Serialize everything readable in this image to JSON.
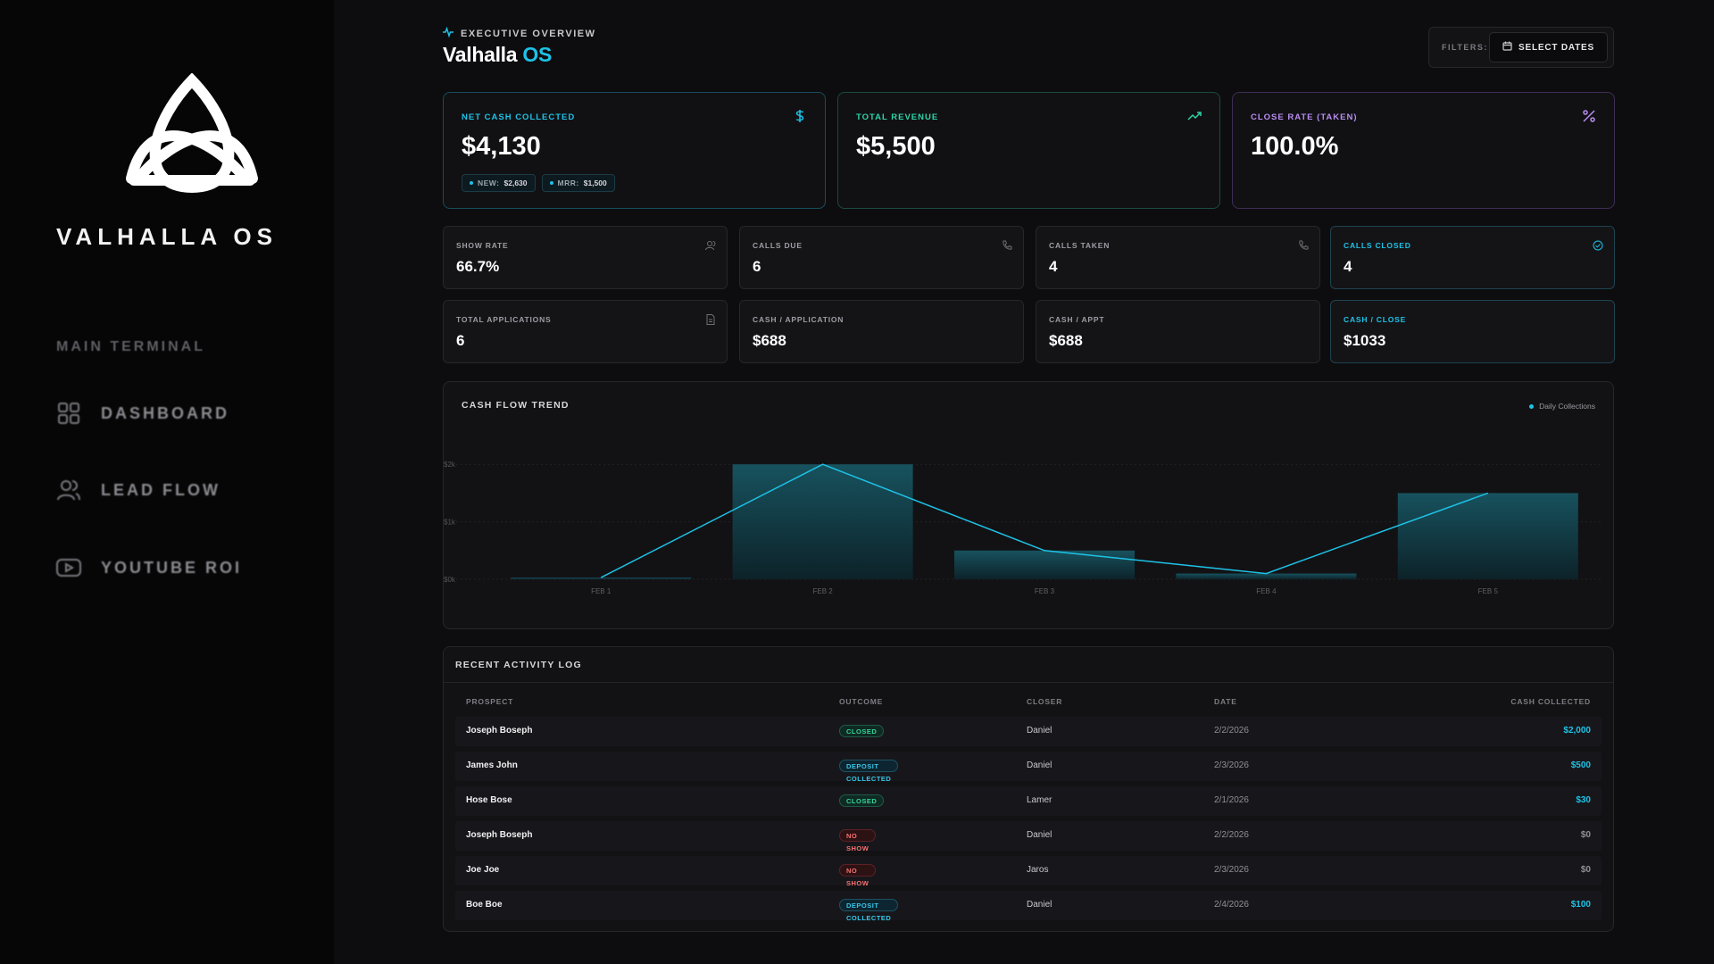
{
  "sidebar": {
    "brand": "VALHALLA OS",
    "section_label": "MAIN TERMINAL",
    "items": [
      {
        "label": "DASHBOARD",
        "icon": "dashboard-grid-icon"
      },
      {
        "label": "LEAD FLOW",
        "icon": "users-icon"
      },
      {
        "label": "YOUTUBE ROI",
        "icon": "youtube-play-icon"
      }
    ]
  },
  "header": {
    "eyebrow": "EXECUTIVE OVERVIEW",
    "title_main": "Valhalla",
    "title_accent": "OS",
    "filters_label": "FILTERS:",
    "date_button": "SELECT DATES"
  },
  "kpis": [
    {
      "label": "NET CASH COLLECTED",
      "value": "$4,130",
      "icon": "dollar-icon",
      "color": "#1ec2e6",
      "chips": [
        {
          "key": "NEW:",
          "value": "$2,630"
        },
        {
          "key": "MRR:",
          "value": "$1,500"
        }
      ]
    },
    {
      "label": "TOTAL REVENUE",
      "value": "$5,500",
      "icon": "trending-up-icon",
      "color": "#2dd4a7"
    },
    {
      "label": "CLOSE RATE (TAKEN)",
      "value": "100.0%",
      "icon": "percent-icon",
      "color": "#b98cf0"
    }
  ],
  "stats": [
    {
      "label": "SHOW RATE",
      "value": "66.7%",
      "icon": "user-icon"
    },
    {
      "label": "CALLS DUE",
      "value": "6",
      "icon": "phone-icon"
    },
    {
      "label": "CALLS TAKEN",
      "value": "4",
      "icon": "phone-icon"
    },
    {
      "label": "CALLS CLOSED",
      "value": "4",
      "icon": "check-circle-icon",
      "accent": true
    },
    {
      "label": "TOTAL APPLICATIONS",
      "value": "6",
      "icon": "document-icon"
    },
    {
      "label": "CASH / APPLICATION",
      "value": "$688"
    },
    {
      "label": "CASH / APPT",
      "value": "$688"
    },
    {
      "label": "CASH / CLOSE",
      "value": "$1033",
      "accent": true
    }
  ],
  "chart": {
    "title": "CASH FLOW TREND",
    "legend": "Daily Collections"
  },
  "chart_data": {
    "type": "bar",
    "title": "CASH FLOW TREND",
    "categories": [
      "FEB 1",
      "FEB 2",
      "FEB 3",
      "FEB 4",
      "FEB 5"
    ],
    "series": [
      {
        "name": "Daily Collections",
        "values": [
          30,
          2000,
          500,
          100,
          1500
        ]
      }
    ],
    "yticks": [
      "$0k",
      "$1k",
      "$2k"
    ],
    "ylim": [
      0,
      2500
    ],
    "overlay": "line",
    "grid": true,
    "legend_position": "top-right"
  },
  "activity": {
    "title": "RECENT ACTIVITY LOG",
    "columns": [
      "PROSPECT",
      "OUTCOME",
      "CLOSER",
      "DATE",
      "CASH COLLECTED"
    ],
    "rows": [
      {
        "prospect": "Joseph Boseph",
        "outcome": "CLOSED",
        "closer": "Daniel",
        "date": "2/2/2026",
        "cash": "$2,000"
      },
      {
        "prospect": "James John",
        "outcome": "DEPOSIT COLLECTED",
        "closer": "Daniel",
        "date": "2/3/2026",
        "cash": "$500"
      },
      {
        "prospect": "Hose Bose",
        "outcome": "CLOSED",
        "closer": "Lamer",
        "date": "2/1/2026",
        "cash": "$30"
      },
      {
        "prospect": "Joseph Boseph",
        "outcome": "NO SHOW",
        "closer": "Daniel",
        "date": "2/2/2026",
        "cash": "$0"
      },
      {
        "prospect": "Joe Joe",
        "outcome": "NO SHOW",
        "closer": "Jaros",
        "date": "2/3/2026",
        "cash": "$0"
      },
      {
        "prospect": "Boe Boe",
        "outcome": "DEPOSIT COLLECTED",
        "closer": "Daniel",
        "date": "2/4/2026",
        "cash": "$100"
      }
    ]
  },
  "colors": {
    "accent": "#1ec2e6",
    "closed": "#34d399",
    "deposit": "#38c6e8",
    "no_show": "#f87171"
  }
}
